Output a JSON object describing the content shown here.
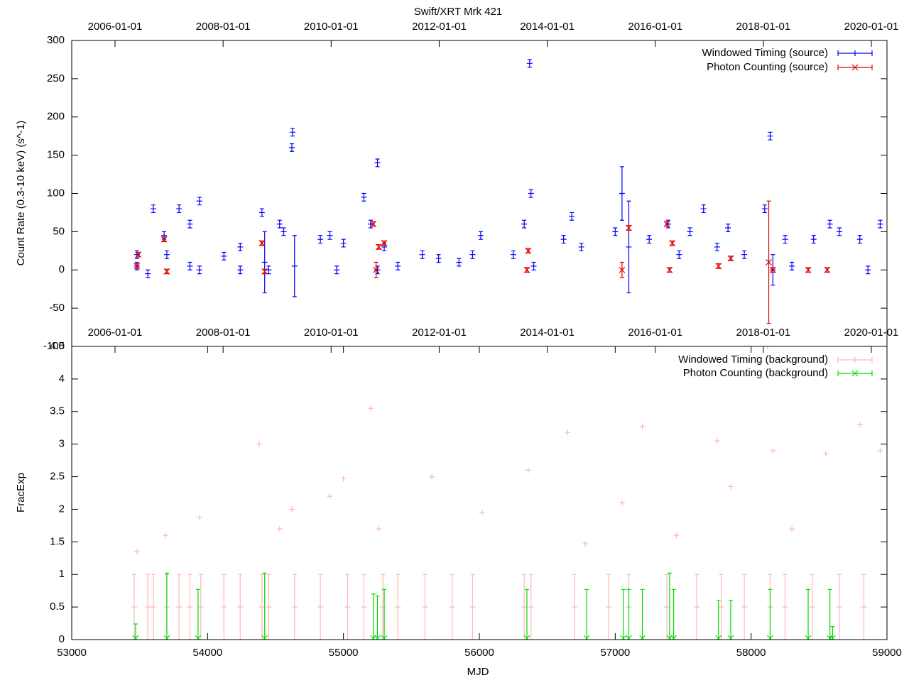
{
  "chart_data": [
    {
      "type": "scatter",
      "title": "Swift/XRT Mrk 421",
      "y_label": "Count Rate (0.3-10 keV) (s^-1)",
      "xlim": [
        53000,
        59000
      ],
      "ylim": [
        -100,
        300
      ],
      "yticks": [
        -100,
        -50,
        0,
        50,
        100,
        150,
        200,
        250,
        300
      ],
      "x2lim": [
        2005.198,
        2020.289
      ],
      "x2ticks": [
        {
          "value": 2006,
          "label": "2006-01-01"
        },
        {
          "value": 2008,
          "label": "2008-01-01"
        },
        {
          "value": 2010,
          "label": "2010-01-01"
        },
        {
          "value": 2012,
          "label": "2012-01-01"
        },
        {
          "value": 2014,
          "label": "2014-01-01"
        },
        {
          "value": 2016,
          "label": "2016-01-01"
        },
        {
          "value": 2018,
          "label": "2018-01-01"
        },
        {
          "value": 2020,
          "label": "2020-01-01"
        }
      ],
      "legend": "upper right",
      "series": [
        {
          "name": "Windowed Timing (source)",
          "color": "#0000ff",
          "marker": "plus",
          "x": [
            53480,
            53480,
            53560,
            53600,
            53680,
            53700,
            53790,
            53870,
            53870,
            53940,
            53940,
            54120,
            54240,
            54240,
            54400,
            54420,
            54450,
            54530,
            54560,
            54620,
            54625,
            54640,
            54830,
            54900,
            54950,
            55000,
            55150,
            55200,
            55250,
            55250,
            55300,
            55400,
            55580,
            55700,
            55850,
            55950,
            56010,
            56250,
            56330,
            56370,
            56380,
            56400,
            56620,
            56680,
            56750,
            57000,
            57050,
            57100,
            57250,
            57390,
            57470,
            57550,
            57650,
            57750,
            57830,
            57950,
            58100,
            58140,
            58160,
            58250,
            58300,
            58460,
            58580,
            58650,
            58800,
            58860,
            58950
          ],
          "values": [
            5,
            20,
            -5,
            80,
            45,
            20,
            80,
            60,
            5,
            90,
            0,
            18,
            30,
            0,
            75,
            10,
            0,
            60,
            50,
            160,
            180,
            5,
            40,
            45,
            0,
            35,
            95,
            60,
            140,
            0,
            30,
            5,
            20,
            15,
            10,
            20,
            45,
            20,
            60,
            270,
            100,
            5,
            40,
            70,
            30,
            50,
            100,
            30,
            40,
            60,
            20,
            50,
            80,
            30,
            55,
            20,
            80,
            175,
            0,
            40,
            5,
            40,
            60,
            50,
            40,
            0,
            60
          ],
          "errors": [
            5,
            5,
            5,
            5,
            5,
            5,
            5,
            5,
            5,
            5,
            5,
            5,
            5,
            5,
            5,
            40,
            5,
            5,
            5,
            5,
            5,
            40,
            5,
            5,
            5,
            5,
            5,
            5,
            5,
            5,
            5,
            5,
            5,
            5,
            5,
            5,
            5,
            5,
            5,
            5,
            5,
            5,
            5,
            5,
            5,
            5,
            35,
            60,
            5,
            5,
            5,
            5,
            5,
            5,
            5,
            5,
            5,
            5,
            20,
            5,
            5,
            5,
            5,
            5,
            5,
            5,
            5
          ]
        },
        {
          "name": "Photon Counting (source)",
          "color": "#dd0000",
          "marker": "cross",
          "x": [
            53480,
            53490,
            53680,
            53700,
            54400,
            54420,
            55220,
            55240,
            55260,
            55300,
            56350,
            56360,
            57050,
            57100,
            57380,
            57400,
            57420,
            57760,
            57850,
            58130,
            58160,
            58420,
            58560
          ],
          "values": [
            5,
            20,
            40,
            -2,
            35,
            -2,
            60,
            0,
            30,
            35,
            0,
            25,
            0,
            55,
            60,
            0,
            35,
            5,
            15,
            10,
            0,
            0,
            0
          ],
          "errors": [
            3,
            3,
            3,
            3,
            3,
            3,
            3,
            10,
            3,
            3,
            3,
            3,
            10,
            3,
            3,
            3,
            3,
            3,
            3,
            80,
            3,
            3,
            3
          ]
        }
      ]
    },
    {
      "type": "scatter",
      "x_label": "MJD",
      "y_label": "FracExp",
      "xlim": [
        53000,
        59000
      ],
      "xticks": [
        53000,
        54000,
        55000,
        56000,
        57000,
        58000,
        59000
      ],
      "ylim": [
        0,
        4.5
      ],
      "yticks": [
        0,
        0.5,
        1,
        1.5,
        2,
        2.5,
        3,
        3.5,
        4,
        4.5
      ],
      "x2lim": [
        2005.198,
        2020.289
      ],
      "x2ticks": [
        {
          "value": 2006,
          "label": "2006-01-01"
        },
        {
          "value": 2008,
          "label": "2008-01-01"
        },
        {
          "value": 2010,
          "label": "2010-01-01"
        },
        {
          "value": 2012,
          "label": "2012-01-01"
        },
        {
          "value": 2014,
          "label": "2014-01-01"
        },
        {
          "value": 2016,
          "label": "2016-01-01"
        },
        {
          "value": 2018,
          "label": "2018-01-01"
        },
        {
          "value": 2020,
          "label": "2020-01-01"
        }
      ],
      "legend": "upper right",
      "series": [
        {
          "name": "Windowed Timing (background)",
          "color": "#ffb6b6",
          "marker": "plus",
          "x": [
            53460,
            53480,
            53560,
            53600,
            53690,
            53700,
            53790,
            53870,
            53940,
            53950,
            54120,
            54240,
            54380,
            54400,
            54450,
            54530,
            54620,
            54640,
            54830,
            54900,
            55000,
            55030,
            55150,
            55200,
            55260,
            55290,
            55400,
            55600,
            55650,
            55800,
            55950,
            56020,
            56330,
            56360,
            56380,
            56650,
            56700,
            56780,
            56950,
            57050,
            57100,
            57200,
            57380,
            57450,
            57600,
            57750,
            57780,
            57850,
            57950,
            58120,
            58140,
            58160,
            58250,
            58300,
            58450,
            58550,
            58650,
            58800,
            58830,
            58950
          ],
          "values": [
            0.5,
            1.35,
            0.5,
            0.5,
            1.6,
            0.5,
            0.5,
            0.5,
            1.87,
            0.5,
            0.5,
            0.5,
            3.0,
            0.5,
            0.5,
            1.7,
            2.0,
            0.5,
            0.5,
            2.2,
            2.47,
            0.5,
            0.5,
            3.55,
            1.7,
            0.5,
            0.5,
            0.5,
            2.5,
            0.5,
            0.5,
            1.95,
            0.5,
            2.6,
            0.5,
            3.18,
            0.5,
            1.47,
            0.5,
            2.1,
            0.5,
            3.27,
            0.5,
            1.6,
            0.5,
            3.05,
            0.5,
            2.35,
            0.5,
            4.5,
            0.5,
            2.9,
            0.5,
            1.7,
            0.5,
            2.85,
            0.5,
            3.3,
            0.5,
            2.9
          ],
          "errors": [
            0.5,
            0,
            0.5,
            0.5,
            0,
            0.5,
            0.5,
            0.5,
            0,
            0.5,
            0.5,
            0.5,
            0,
            0.5,
            0.5,
            0,
            0,
            0.5,
            0.5,
            0,
            0,
            0.5,
            0.5,
            0,
            0,
            0.5,
            0.5,
            0.5,
            0,
            0.5,
            0.5,
            0,
            0.5,
            0,
            0.5,
            0,
            0.5,
            0,
            0.5,
            0,
            0.5,
            0,
            0.5,
            0,
            0.5,
            0,
            0.5,
            0,
            0.5,
            0,
            0.5,
            0,
            0.5,
            0,
            0.5,
            0,
            0.5,
            0,
            0.5,
            0
          ]
        },
        {
          "name": "Photon Counting (background)",
          "color": "#00dd00",
          "marker": "cross",
          "x": [
            53470,
            53700,
            53930,
            54420,
            55220,
            55250,
            55300,
            56350,
            56790,
            57060,
            57100,
            57200,
            57400,
            57430,
            57760,
            57850,
            58140,
            58420,
            58580,
            58600
          ],
          "values": [
            0.02,
            0.02,
            0.02,
            0.02,
            0.02,
            0.02,
            0.02,
            0.02,
            0.02,
            0.02,
            0.02,
            0.02,
            0.02,
            0.02,
            0.02,
            0.02,
            0.02,
            0.02,
            0.02,
            0.02
          ],
          "errors": [
            0.22,
            1.0,
            0.75,
            1.0,
            0.68,
            0.65,
            0.75,
            0.75,
            0.75,
            0.75,
            0.75,
            0.75,
            1.0,
            0.75,
            0.58,
            0.58,
            0.75,
            0.75,
            0.75,
            0.18
          ]
        }
      ]
    }
  ]
}
